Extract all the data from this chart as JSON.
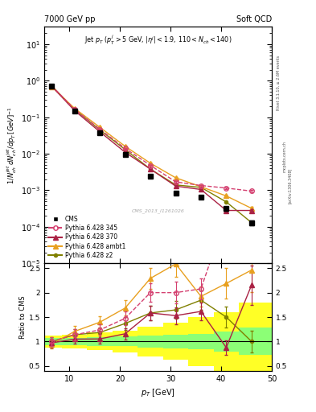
{
  "title_left": "7000 GeV pp",
  "title_right": "Soft QCD",
  "cms_label": "CMS_2013_I1261026",
  "ylabel_main": "1/N_{ch}^{jet} dN_{ch}^{jet}/dp_{T} [GeV]^{-1}",
  "ylabel_ratio": "Ratio to CMS",
  "xlabel": "p_{T} [GeV]",
  "xlim": [
    5,
    50
  ],
  "ylim_main": [
    1e-05,
    30
  ],
  "ylim_ratio": [
    0.4,
    2.6
  ],
  "cms_x": [
    6.5,
    11,
    16,
    21,
    26,
    31,
    36,
    41,
    46
  ],
  "cms_y": [
    0.72,
    0.145,
    0.038,
    0.0095,
    0.0024,
    0.00085,
    0.00065,
    0.00032,
    0.00013
  ],
  "cms_yerr": [
    0.06,
    0.012,
    0.003,
    0.0008,
    0.0002,
    8e-05,
    6e-05,
    4e-05,
    2e-05
  ],
  "cms_color": "#000000",
  "p345_x": [
    6.5,
    11,
    16,
    21,
    26,
    31,
    36,
    41,
    46
  ],
  "p345_y": [
    0.72,
    0.165,
    0.047,
    0.014,
    0.0048,
    0.0017,
    0.00135,
    0.00115,
    0.00095
  ],
  "p345_yerr": [
    0.03,
    0.008,
    0.002,
    0.0006,
    0.0002,
    0.0001,
    7e-05,
    6e-05,
    5e-05
  ],
  "p345_color": "#d44070",
  "p345_label": "Pythia 6.428 345",
  "p370_x": [
    6.5,
    11,
    16,
    21,
    26,
    31,
    36,
    41,
    46
  ],
  "p370_y": [
    0.7,
    0.152,
    0.04,
    0.011,
    0.0038,
    0.0013,
    0.00105,
    0.00028,
    0.00028
  ],
  "p370_yerr": [
    0.03,
    0.007,
    0.002,
    0.0005,
    0.00015,
    8e-05,
    6e-05,
    3e-05,
    3e-05
  ],
  "p370_color": "#aa2244",
  "p370_label": "Pythia 6.428 370",
  "pambt_x": [
    6.5,
    11,
    16,
    21,
    26,
    31,
    36,
    41,
    46
  ],
  "pambt_y": [
    0.68,
    0.175,
    0.053,
    0.016,
    0.0055,
    0.0022,
    0.00125,
    0.0007,
    0.00032
  ],
  "pambt_yerr": [
    0.03,
    0.008,
    0.002,
    0.0006,
    0.0002,
    0.0001,
    7e-05,
    5e-05,
    3e-05
  ],
  "pambt_color": "#e8a020",
  "pambt_label": "Pythia 6.428 ambt1",
  "pz2_x": [
    6.5,
    11,
    16,
    21,
    26,
    31,
    36,
    41,
    46
  ],
  "pz2_y": [
    0.72,
    0.165,
    0.045,
    0.013,
    0.0038,
    0.0014,
    0.0012,
    0.00048,
    0.00013
  ],
  "pz2_yerr": [
    0.03,
    0.008,
    0.002,
    0.0005,
    0.00015,
    8e-05,
    6e-05,
    3e-05,
    2e-05
  ],
  "pz2_color": "#808000",
  "pz2_label": "Pythia 6.428 z2",
  "bin_edges": [
    5,
    8.5,
    13.5,
    18.5,
    23.5,
    28.5,
    33.5,
    38.5,
    43.5,
    50
  ],
  "err_green": [
    0.07,
    0.08,
    0.09,
    0.1,
    0.12,
    0.14,
    0.16,
    0.2,
    0.28
  ],
  "err_yellow": [
    0.12,
    0.14,
    0.18,
    0.22,
    0.3,
    0.38,
    0.5,
    0.6,
    0.8
  ],
  "bg_color": "#ffffff"
}
